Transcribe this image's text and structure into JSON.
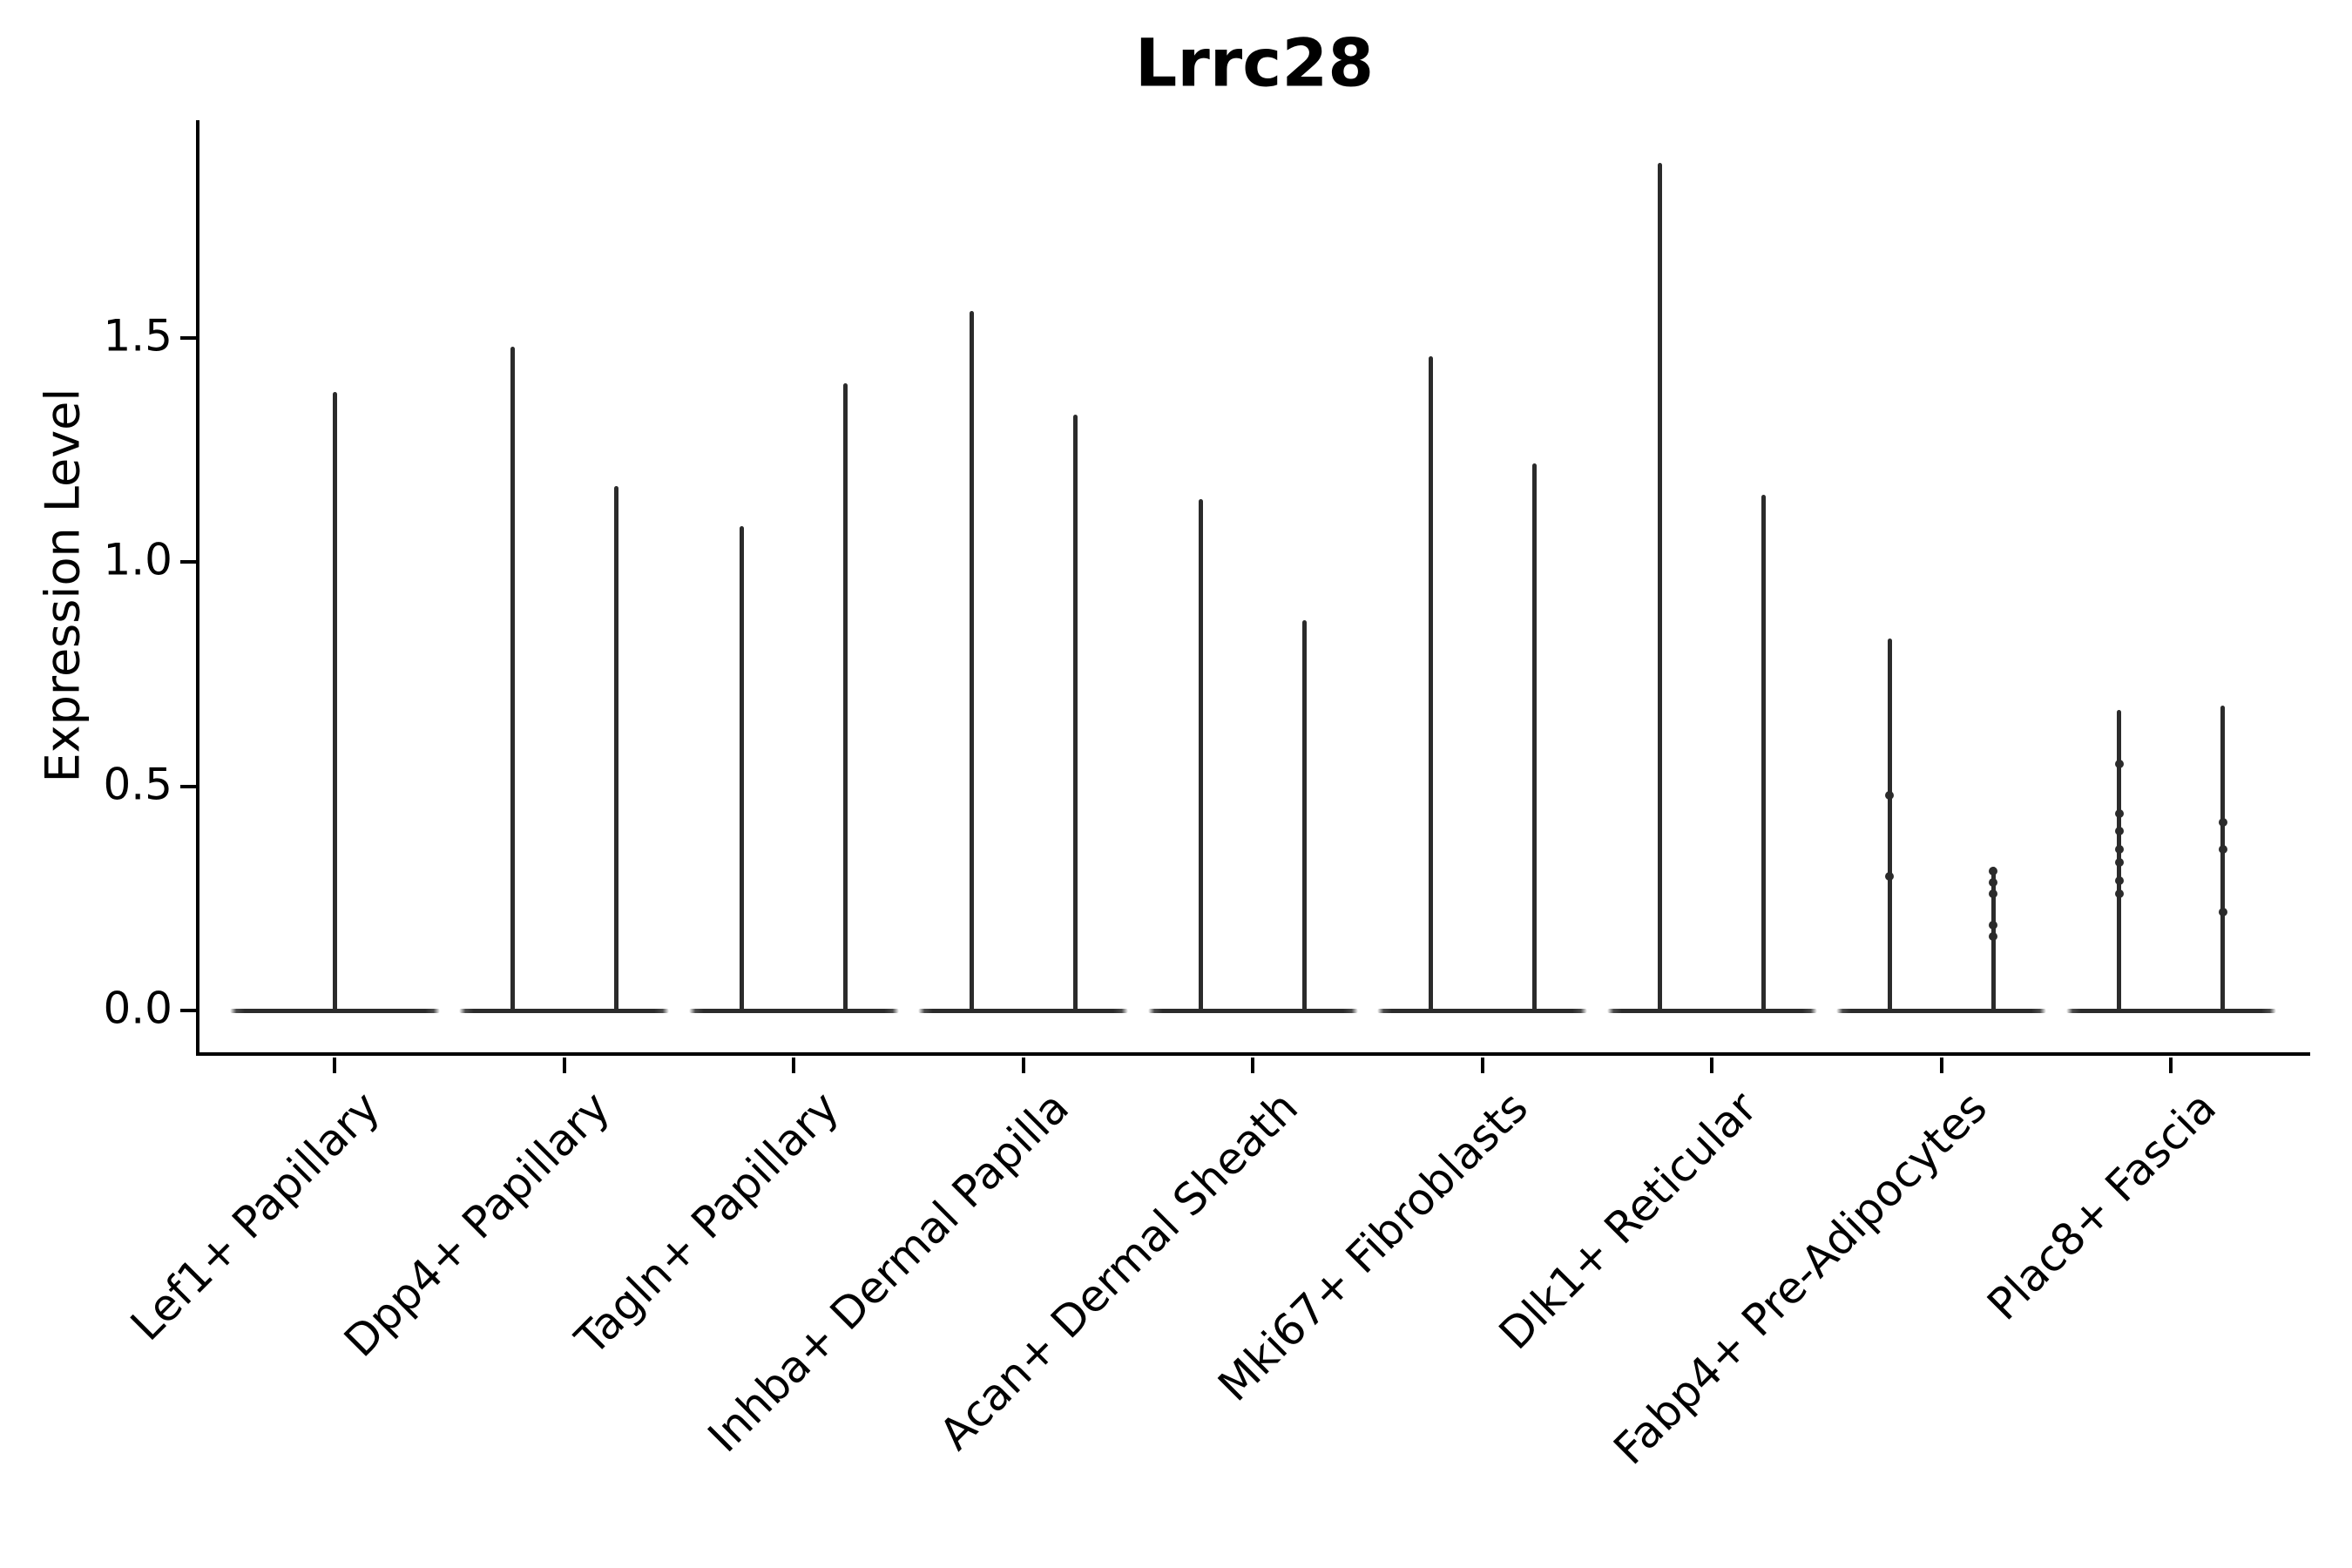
{
  "title": "Lrrc28",
  "y_axis": {
    "label": "Expression Level",
    "tick_labels": [
      "0.0",
      "0.5",
      "1.0",
      "1.5"
    ],
    "tick_values": [
      0.0,
      0.5,
      1.0,
      1.5
    ]
  },
  "x_axis": {
    "categories": [
      "Lef1+ Papillary",
      "Dpp4+ Papillary",
      "Tagln+ Papillary",
      "Inhba+ Dermal Papilla",
      "Acan+ Dermal Sheath",
      "Mki67+ Fibroblasts",
      "Dlk1+ Reticular",
      "Fabp4+ Pre-Adipocytes",
      "Plac8+ Fascia"
    ]
  },
  "chart_data": {
    "type": "violin",
    "title": "Lrrc28",
    "xlabel": "",
    "ylabel": "Expression Level",
    "ylim": [
      -0.1,
      1.99
    ],
    "yticks": [
      0.0,
      0.5,
      1.0,
      1.5
    ],
    "grid": false,
    "legend": null,
    "baseline_value": 0,
    "description": "Violin plot of Lrrc28 expression per cell type; each violin collapses to a wide flat lens at 0 (most cells not expressing) with a thin vertical spike up to the maximum expression value. Categories 2-9 contain two violins (left/right); category 1 has a single centered violin.",
    "categories": [
      "Lef1+ Papillary",
      "Dpp4+ Papillary",
      "Tagln+ Papillary",
      "Inhba+ Dermal Papilla",
      "Acan+ Dermal Sheath",
      "Mki67+ Fibroblasts",
      "Dlk1+ Reticular",
      "Fabp4+ Pre-Adipocytes",
      "Plac8+ Fascia"
    ],
    "series": [
      {
        "category": "Lef1+ Papillary",
        "violins": [
          {
            "group": "center",
            "max": 1.38,
            "points": []
          }
        ]
      },
      {
        "category": "Dpp4+ Papillary",
        "violins": [
          {
            "group": "left",
            "max": 1.48,
            "points": []
          },
          {
            "group": "right",
            "max": 1.17,
            "points": []
          }
        ]
      },
      {
        "category": "Tagln+ Papillary",
        "violins": [
          {
            "group": "left",
            "max": 1.08,
            "points": []
          },
          {
            "group": "right",
            "max": 1.4,
            "points": []
          }
        ]
      },
      {
        "category": "Inhba+ Dermal Papilla",
        "violins": [
          {
            "group": "left",
            "max": 1.56,
            "points": []
          },
          {
            "group": "right",
            "max": 1.33,
            "points": []
          }
        ]
      },
      {
        "category": "Acan+ Dermal Sheath",
        "violins": [
          {
            "group": "left",
            "max": 1.14,
            "points": []
          },
          {
            "group": "right",
            "max": 0.87,
            "points": []
          }
        ]
      },
      {
        "category": "Mki67+ Fibroblasts",
        "violins": [
          {
            "group": "left",
            "max": 1.46,
            "points": []
          },
          {
            "group": "right",
            "max": 1.22,
            "points": []
          }
        ]
      },
      {
        "category": "Dlk1+ Reticular",
        "violins": [
          {
            "group": "left",
            "max": 1.89,
            "points": []
          },
          {
            "group": "right",
            "max": 1.15,
            "points": []
          }
        ]
      },
      {
        "category": "Fabp4+ Pre-Adipocytes",
        "violins": [
          {
            "group": "left",
            "max": 0.83,
            "points": [
              0.48,
              0.3
            ]
          },
          {
            "group": "right",
            "max": 0.32,
            "points": [
              0.31,
              0.285,
              0.26,
              0.19,
              0.165
            ]
          }
        ]
      },
      {
        "category": "Plac8+ Fascia",
        "violins": [
          {
            "group": "left",
            "max": 0.67,
            "points": [
              0.55,
              0.44,
              0.4,
              0.36,
              0.33,
              0.29,
              0.26
            ]
          },
          {
            "group": "right",
            "max": 0.68,
            "points": [
              0.42,
              0.36,
              0.22
            ]
          }
        ]
      }
    ],
    "colors": {
      "violin": "#2b2b2b",
      "axis": "#000000",
      "text": "#000000",
      "background": "#ffffff"
    }
  }
}
